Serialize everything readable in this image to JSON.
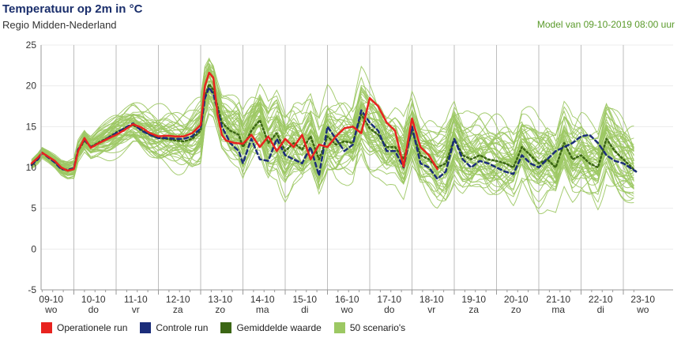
{
  "header": {
    "title": "Temperatuur op 2m in °C",
    "subtitle": "Regio Midden-Nederland",
    "model": "Model van 09-10-2019 08:00 uur"
  },
  "colors": {
    "operational": "#e8231f",
    "control": "#1b2d7a",
    "mean": "#3b6614",
    "scenarios": "#9cc863"
  },
  "legend": [
    {
      "label": "Operationele run",
      "color": "#e8231f"
    },
    {
      "label": "Controle run",
      "color": "#1b2d7a"
    },
    {
      "label": "Gemiddelde waarde",
      "color": "#3b6614"
    },
    {
      "label": "50 scenario's",
      "color": "#9cc863"
    }
  ],
  "chart_data": {
    "type": "line",
    "ylim": [
      -5,
      25
    ],
    "yticks": [
      -5,
      0,
      5,
      10,
      15,
      20,
      25
    ],
    "x_range_days": [
      0,
      14.3
    ],
    "grid": "vertical",
    "days": [
      {
        "date": "09-10",
        "day": "wo"
      },
      {
        "date": "10-10",
        "day": "do"
      },
      {
        "date": "11-10",
        "day": "vr"
      },
      {
        "date": "12-10",
        "day": "za"
      },
      {
        "date": "13-10",
        "day": "zo"
      },
      {
        "date": "14-10",
        "day": "ma"
      },
      {
        "date": "15-10",
        "day": "di"
      },
      {
        "date": "16-10",
        "day": "wo"
      },
      {
        "date": "17-10",
        "day": "do"
      },
      {
        "date": "18-10",
        "day": "vr"
      },
      {
        "date": "19-10",
        "day": "za"
      },
      {
        "date": "20-10",
        "day": "zo"
      },
      {
        "date": "21-10",
        "day": "ma"
      },
      {
        "date": "22-10",
        "day": "di"
      },
      {
        "date": "23-10",
        "day": "wo"
      }
    ],
    "series": [
      {
        "name": "Operationele run",
        "key": "operational",
        "x": [
          0,
          0.15,
          0.25,
          0.4,
          0.55,
          0.7,
          0.85,
          1.0,
          1.1,
          1.25,
          1.4,
          1.6,
          1.8,
          2.0,
          2.2,
          2.4,
          2.6,
          2.8,
          3.0,
          3.2,
          3.4,
          3.6,
          3.8,
          4.0,
          4.1,
          4.2,
          4.3,
          4.4,
          4.5,
          4.6,
          4.8,
          5.0,
          5.2,
          5.4,
          5.6,
          5.8,
          6.0,
          6.2,
          6.4,
          6.6,
          6.8,
          7.0,
          7.2,
          7.4,
          7.6,
          7.8,
          8.0,
          8.2,
          8.4,
          8.6,
          8.8,
          9.0,
          9.2,
          9.4,
          9.6
        ],
        "y": [
          10.5,
          11.2,
          11.8,
          11.3,
          10.8,
          10.0,
          9.6,
          9.8,
          12.0,
          13.6,
          12.4,
          13.0,
          13.5,
          14.0,
          14.6,
          15.3,
          14.9,
          14.2,
          13.8,
          13.9,
          13.8,
          13.8,
          14.2,
          15.2,
          20.0,
          21.6,
          21.0,
          16.5,
          14.0,
          13.3,
          13.0,
          12.9,
          14.0,
          12.5,
          13.8,
          12.0,
          13.5,
          12.5,
          14.0,
          11.0,
          12.8,
          12.5,
          13.8,
          14.8,
          15.0,
          14.2,
          18.5,
          17.5,
          15.5,
          14.5,
          10.1,
          16.0,
          12.5,
          11.5,
          9.8
        ]
      },
      {
        "name": "Controle run",
        "key": "control",
        "x": [
          0,
          0.15,
          0.25,
          0.4,
          0.55,
          0.7,
          0.85,
          1.0,
          1.1,
          1.25,
          1.4,
          1.6,
          1.8,
          2.0,
          2.2,
          2.4,
          2.6,
          2.8,
          3.0,
          3.2,
          3.4,
          3.6,
          3.8,
          4.0,
          4.1,
          4.2,
          4.3,
          4.5,
          4.7,
          4.9,
          5.0,
          5.2,
          5.4,
          5.6,
          5.8,
          6.0,
          6.2,
          6.4,
          6.6,
          6.8,
          7.0,
          7.2,
          7.4,
          7.6,
          7.8,
          8.0,
          8.2,
          8.4,
          8.6,
          8.8,
          9.0,
          9.2,
          9.4,
          9.6,
          9.8,
          10.0,
          10.2,
          10.4,
          10.6,
          10.8,
          11.0,
          11.2,
          11.4,
          11.6,
          11.8,
          12.0,
          12.2,
          12.4,
          12.6,
          12.8,
          13.0,
          13.2,
          13.4,
          13.6,
          13.8,
          14.0,
          14.3
        ],
        "y": [
          10.3,
          11.0,
          11.8,
          11.2,
          10.6,
          9.8,
          9.7,
          9.9,
          12.2,
          13.4,
          12.5,
          13.0,
          13.6,
          14.2,
          14.8,
          15.4,
          14.5,
          14.0,
          13.6,
          13.6,
          13.5,
          13.5,
          13.8,
          14.8,
          18.5,
          19.8,
          19.0,
          15.0,
          13.0,
          12.0,
          10.5,
          13.5,
          11.0,
          10.8,
          13.5,
          11.5,
          11.0,
          10.5,
          12.5,
          9.0,
          15.0,
          13.5,
          12.0,
          12.8,
          17.0,
          15.5,
          14.5,
          12.0,
          12.0,
          10.0,
          15.0,
          10.5,
          10.0,
          8.6,
          9.5,
          13.5,
          11.0,
          10.0,
          10.8,
          10.5,
          10.0,
          9.5,
          9.2,
          11.5,
          10.5,
          10.0,
          11.0,
          12.0,
          12.5,
          13.0,
          13.8,
          14.0,
          13.0,
          11.5,
          10.8,
          10.5,
          9.5
        ]
      },
      {
        "name": "Gemiddelde waarde",
        "key": "mean",
        "x": [
          0,
          0.15,
          0.25,
          0.4,
          0.55,
          0.7,
          0.85,
          1.0,
          1.1,
          1.25,
          1.4,
          1.6,
          1.8,
          2.0,
          2.2,
          2.4,
          2.6,
          2.8,
          3.0,
          3.2,
          3.4,
          3.6,
          3.8,
          4.0,
          4.1,
          4.2,
          4.3,
          4.5,
          4.7,
          4.9,
          5.0,
          5.2,
          5.4,
          5.6,
          5.8,
          6.0,
          6.2,
          6.4,
          6.6,
          6.8,
          7.0,
          7.2,
          7.4,
          7.6,
          7.8,
          8.0,
          8.2,
          8.4,
          8.6,
          8.8,
          9.0,
          9.2,
          9.4,
          9.6,
          9.8,
          10.0,
          10.2,
          10.4,
          10.6,
          10.8,
          11.0,
          11.2,
          11.4,
          11.6,
          11.8,
          12.0,
          12.2,
          12.4,
          12.6,
          12.8,
          13.0,
          13.2,
          13.4,
          13.6,
          13.8,
          14.0,
          14.3
        ],
        "y": [
          10.4,
          11.1,
          11.8,
          11.3,
          10.7,
          9.9,
          9.6,
          9.8,
          12.0,
          13.3,
          12.5,
          13.1,
          13.6,
          14.3,
          14.8,
          15.2,
          14.6,
          14.0,
          13.6,
          13.5,
          13.3,
          13.2,
          13.5,
          14.5,
          18.8,
          20.2,
          19.5,
          15.5,
          14.5,
          14.0,
          12.5,
          14.5,
          15.8,
          13.0,
          14.2,
          12.0,
          13.0,
          12.2,
          13.8,
          11.0,
          13.8,
          12.8,
          13.2,
          13.0,
          16.5,
          14.8,
          14.0,
          12.5,
          12.5,
          11.0,
          14.5,
          11.5,
          11.0,
          10.0,
          10.5,
          13.5,
          11.5,
          11.0,
          11.5,
          11.0,
          10.8,
          10.5,
          10.0,
          12.5,
          11.5,
          10.5,
          11.0,
          10.0,
          13.0,
          11.0,
          11.5,
          10.5,
          10.0,
          13.5,
          12.0,
          11.0,
          9.5
        ]
      }
    ],
    "scenario_count": 50
  }
}
